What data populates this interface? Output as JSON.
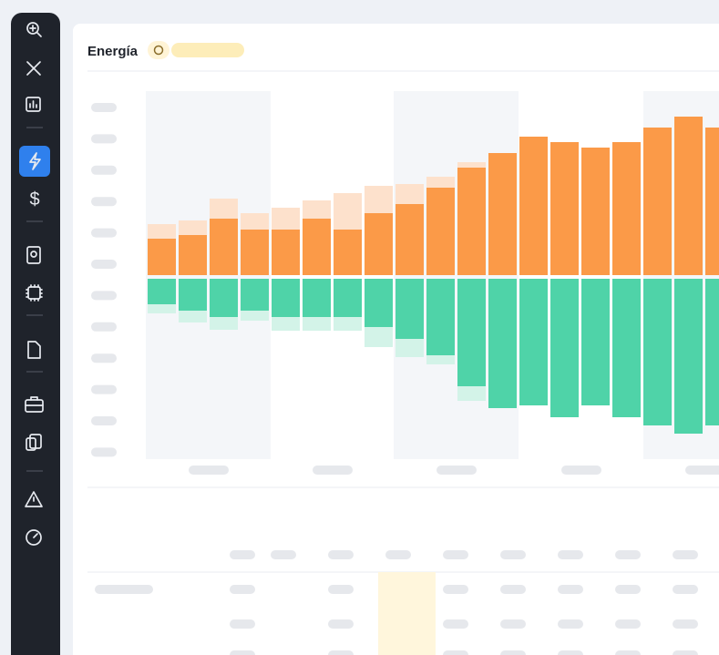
{
  "header": {
    "title": "Energía"
  },
  "chart_data": {
    "type": "bar",
    "ylim": [
      -50,
      50
    ],
    "series": [
      {
        "color": "#fb9a48",
        "values": [
          10,
          11,
          15.5,
          12.5,
          12.5,
          15.5,
          12.5,
          17,
          19.5,
          24,
          29.5,
          33.5,
          38,
          36.5,
          35,
          36.5,
          40.5,
          43.5,
          40.5
        ]
      },
      {
        "color": "#fde1cc",
        "values": [
          4,
          4,
          5.5,
          4.5,
          6,
          5,
          10,
          7.5,
          5.5,
          3,
          1.5,
          0,
          0,
          0,
          0,
          0,
          0,
          0,
          0
        ]
      },
      {
        "color": "#4fd3a8",
        "values": [
          -7,
          -8.75,
          -10.5,
          -8.75,
          -10.5,
          -10.5,
          -10.5,
          -13.25,
          -16.5,
          -21,
          -29.5,
          -35.5,
          -34.75,
          -38,
          -34.75,
          -38,
          -40.25,
          -42.5,
          -40.25
        ]
      },
      {
        "color": "#d3f3e8",
        "values": [
          -2.5,
          -3.25,
          -3.5,
          -2.75,
          -3.75,
          -3.75,
          -3.75,
          -5.5,
          -5,
          -2.5,
          -4,
          0,
          0,
          0,
          0,
          0,
          0,
          0,
          0
        ]
      }
    ]
  }
}
